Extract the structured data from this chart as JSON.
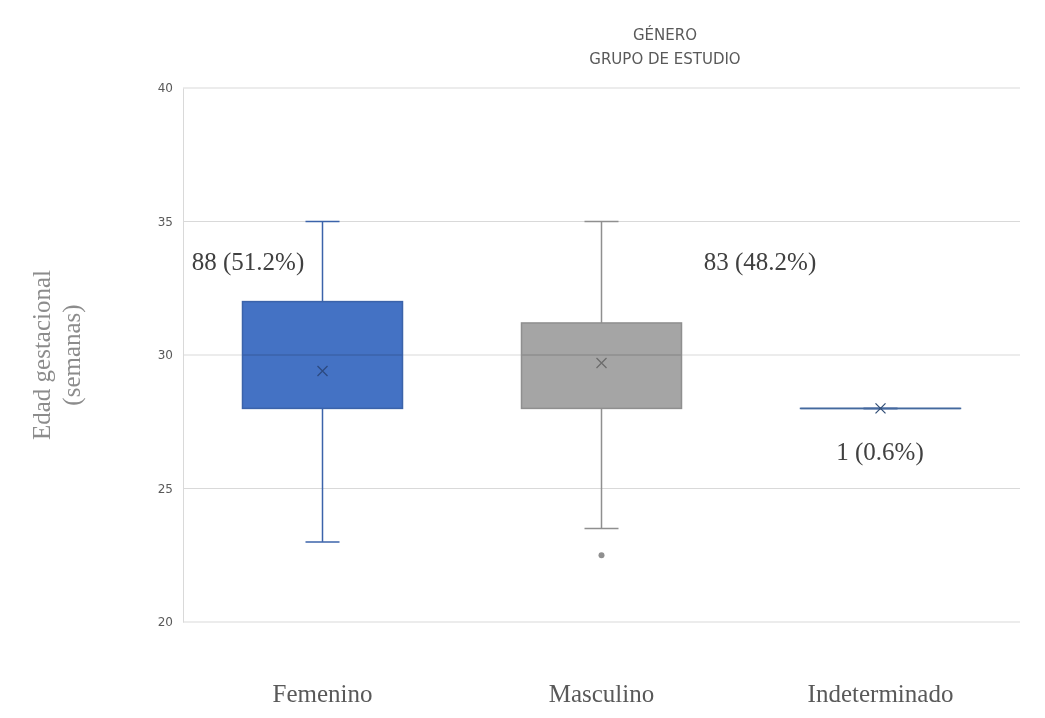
{
  "chart_data": {
    "type": "box",
    "title": "GÉNERO",
    "subtitle": "GRUPO DE ESTUDIO",
    "ylabel": "Edad gestacional (semanas)",
    "categories": [
      "Femenino",
      "Masculino",
      "Indeterminado"
    ],
    "colors": [
      "#4472c4",
      "#a5a5a5",
      "#4e79b6"
    ],
    "boxes": [
      {
        "low": 23,
        "q1": 28,
        "median": 30,
        "q3": 32,
        "high": 35,
        "mean": 29.4
      },
      {
        "low": 23.5,
        "q1": 28,
        "median": 30,
        "q3": 31.2,
        "high": 35,
        "mean": 29.7,
        "outliers": [
          22.5
        ]
      },
      {
        "low": 28,
        "q1": 28,
        "median": 28,
        "q3": 28,
        "high": 28,
        "mean": 28
      }
    ],
    "ylim": [
      20,
      40
    ],
    "yticks": [
      20,
      25,
      30,
      35,
      40
    ],
    "grid": "y",
    "annotations": [
      "88 (51.2%)",
      "83 (48.2%)",
      "1 (0.6%)"
    ]
  }
}
